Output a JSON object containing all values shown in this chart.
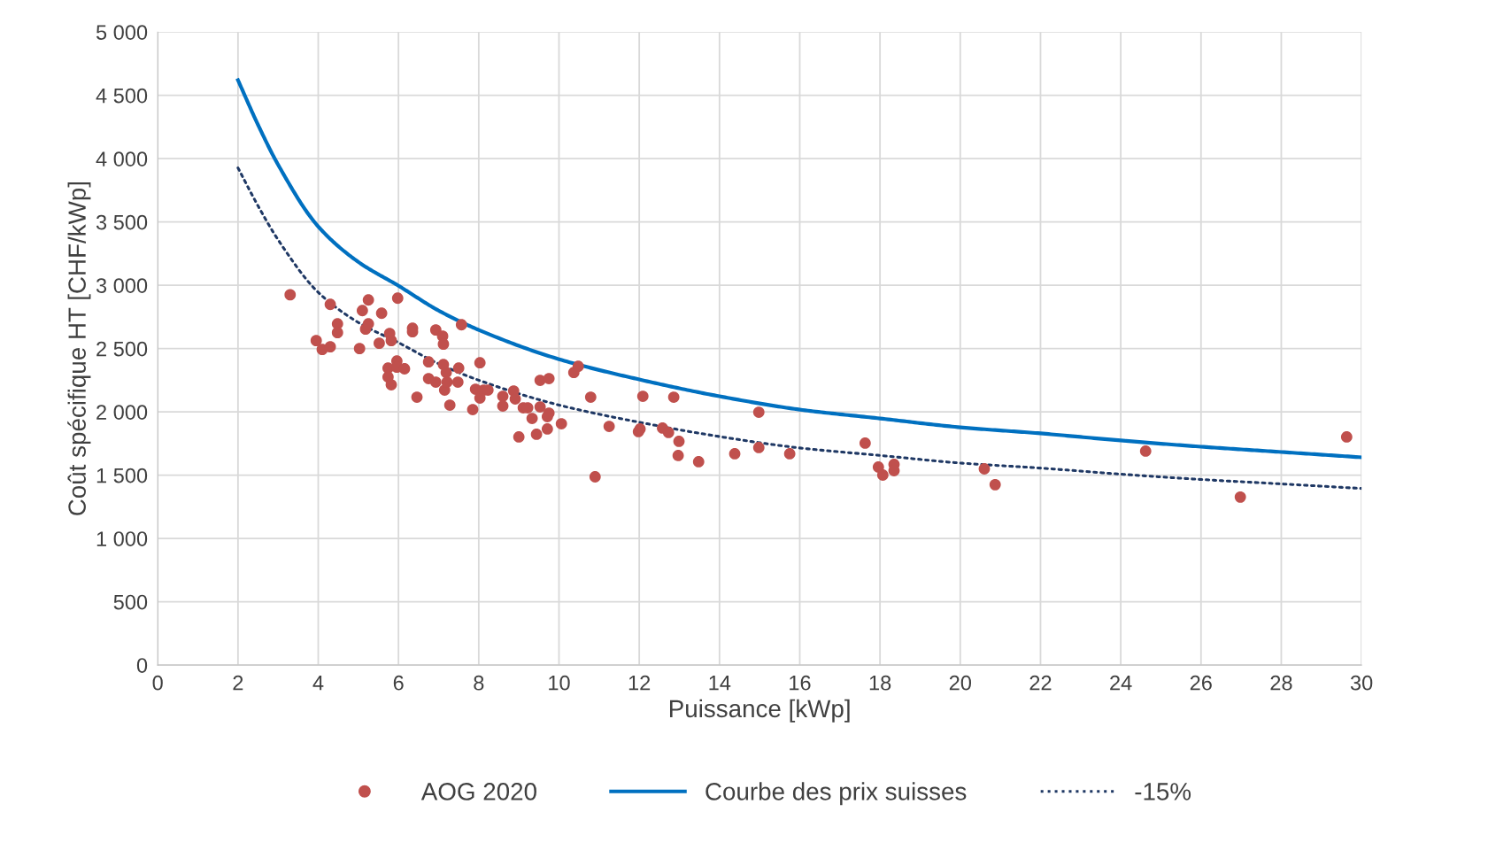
{
  "chart_data": {
    "type": "scatter",
    "xlabel": "Puissance [kWp]",
    "ylabel": "Coût spécifique HT [CHF/kWp]",
    "xlim": [
      0,
      30
    ],
    "xticks": [
      0,
      2,
      4,
      6,
      8,
      10,
      12,
      14,
      16,
      18,
      20,
      22,
      24,
      26,
      28,
      30
    ],
    "ylim": [
      0,
      5000
    ],
    "yticks": [
      0,
      500,
      {
        "value": 1000,
        "label": "1 000"
      },
      {
        "value": 1500,
        "label": "1 500"
      },
      {
        "value": 2000,
        "label": "2 000"
      },
      {
        "value": 2500,
        "label": "2 500"
      },
      {
        "value": 3000,
        "label": "3 000"
      },
      {
        "value": 3500,
        "label": "3 500"
      },
      {
        "value": 4000,
        "label": "4 000"
      },
      {
        "value": 4500,
        "label": "4 500"
      },
      {
        "value": 5000,
        "label": "5 000"
      }
    ],
    "grid": true,
    "legend": "bottom",
    "series": [
      {
        "name": "AOG 2020",
        "marker": "circle",
        "color": "#c0504d",
        "x": [
          3.3,
          3.95,
          4.1,
          4.3,
          4.3,
          4.48,
          4.48,
          5.03,
          5.1,
          5.18,
          5.25,
          5.25,
          5.52,
          5.58,
          5.74,
          5.74,
          5.78,
          5.82,
          5.82,
          5.96,
          5.96,
          5.98,
          6.15,
          6.35,
          6.35,
          6.46,
          6.75,
          6.75,
          6.93,
          6.93,
          7.1,
          7.12,
          7.12,
          7.15,
          7.19,
          7.21,
          7.28,
          7.48,
          7.5,
          7.57,
          7.85,
          7.92,
          8.03,
          8.03,
          8.12,
          8.23,
          8.6,
          8.6,
          8.87,
          8.91,
          9.0,
          9.11,
          9.22,
          9.33,
          9.44,
          9.53,
          9.53,
          9.71,
          9.71,
          9.75,
          9.75,
          10.06,
          10.37,
          10.48,
          10.79,
          10.9,
          11.25,
          11.98,
          12.02,
          12.09,
          12.58,
          12.73,
          12.86,
          12.99,
          12.97,
          13.48,
          14.38,
          14.98,
          14.98,
          15.75,
          17.63,
          17.96,
          18.07,
          18.35,
          18.35,
          20.6,
          20.87,
          24.62,
          26.98,
          29.63
        ],
        "values": [
          2925,
          2563,
          2493,
          2849,
          2514,
          2695,
          2626,
          2500,
          2800,
          2654,
          2884,
          2695,
          2542,
          2779,
          2346,
          2276,
          2619,
          2563,
          2214,
          2402,
          2353,
          2898,
          2340,
          2660,
          2633,
          2116,
          2395,
          2263,
          2647,
          2235,
          2598,
          2535,
          2374,
          2172,
          2311,
          2235,
          2053,
          2235,
          2346,
          2688,
          2018,
          2179,
          2388,
          2109,
          2172,
          2172,
          2123,
          2046,
          2165,
          2102,
          1802,
          2032,
          2032,
          1948,
          1823,
          2249,
          2039,
          1865,
          1962,
          1990,
          2263,
          1906,
          2311,
          2360,
          2116,
          1487,
          1885,
          1844,
          1865,
          2123,
          1872,
          1837,
          2116,
          1767,
          1655,
          1606,
          1669,
          1997,
          1718,
          1669,
          1753,
          1564,
          1501,
          1585,
          1536,
          1550,
          1425,
          1690,
          1327,
          1802
        ]
      },
      {
        "name": "Courbe des prix suisses",
        "type": "line",
        "line_style": "solid",
        "color": "#0070c0",
        "x": [
          2,
          2.5,
          3,
          4,
          5,
          6,
          7,
          8,
          10,
          12,
          14,
          16,
          18,
          20,
          22,
          24,
          26,
          28,
          30
        ],
        "values": [
          4620,
          4267,
          3952,
          3464,
          3184,
          2996,
          2800,
          2647,
          2416,
          2256,
          2123,
          2018,
          1948,
          1878,
          1830,
          1774,
          1725,
          1683,
          1641
        ]
      },
      {
        "name": "-15%",
        "type": "line",
        "line_style": "dotted",
        "color": "#1f3864",
        "x": [
          2,
          2.5,
          3,
          4,
          5,
          6,
          7,
          8,
          10,
          12,
          14,
          16,
          18,
          20,
          22,
          24,
          26,
          28,
          30
        ],
        "values": [
          3927,
          3627,
          3359,
          2944,
          2706,
          2547,
          2380,
          2250,
          2054,
          1918,
          1805,
          1715,
          1656,
          1596,
          1556,
          1508,
          1466,
          1431,
          1395
        ]
      }
    ]
  }
}
